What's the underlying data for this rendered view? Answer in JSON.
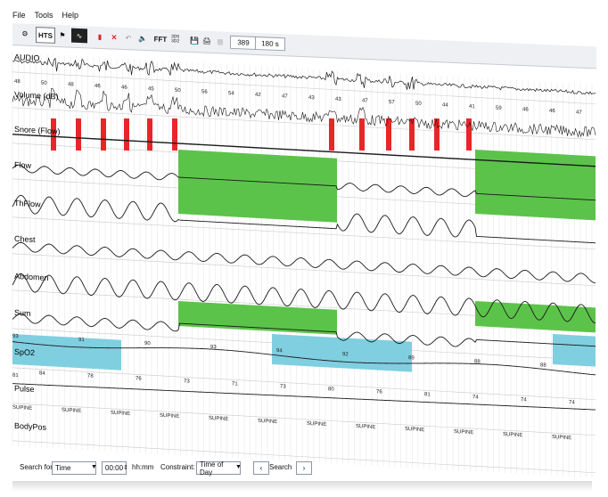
{
  "menu": {
    "file": "File",
    "tools": "Tools",
    "help": "Help"
  },
  "toolbar": {
    "hts_label": "HTS",
    "fft_label": "FFT",
    "arrow_label": "3D5 3D2",
    "epoch_value": "389",
    "window_value": "180 s"
  },
  "channels": {
    "audio": "AUDIO",
    "volume": "Volume (dB)",
    "snore": "Snore (Flow)",
    "flow": "Flow",
    "thflow": "ThFlow",
    "chest": "Chest",
    "abdomen": "Abdomen",
    "sum": "Sum",
    "spo2": "SpO2",
    "pulse": "Pulse",
    "bodypos": "BodyPos"
  },
  "volume_values": [
    "48",
    "50",
    "48",
    "46",
    "46",
    "45",
    "50",
    "56",
    "54",
    "42",
    "47",
    "43",
    "43",
    "47",
    "57",
    "50",
    "44",
    "41",
    "59",
    "46",
    "46",
    "47"
  ],
  "spo2_top_values": [
    "93",
    "91",
    "90",
    "93",
    "94",
    "92",
    "89",
    "88",
    "88"
  ],
  "spo2_bottom_values": [
    "84",
    "78",
    "76",
    "73",
    "71",
    "73",
    "80",
    "76",
    "81",
    "74",
    "74",
    "74"
  ],
  "pulse_values": [
    "81"
  ],
  "bodypos_values": [
    "SUPINE",
    "SUPINE",
    "SUPINE",
    "SUPINE",
    "SUPINE",
    "SUPINE",
    "SUPINE",
    "SUPINE",
    "SUPINE",
    "SUPINE",
    "SUPINE",
    "SUPINE"
  ],
  "status": {
    "search_for_label": "Search for:",
    "search_for_value": "Time",
    "time_value": "00:00",
    "hours_label": "hh:mm",
    "constraint_label": "Constraint:",
    "constraint_value": "Time of Day",
    "search_label": "Search"
  },
  "colors": {
    "snore_marker": "#e8262a",
    "apnea_fill": "#5cc34a",
    "desat_fill": "#7fcfe0"
  }
}
